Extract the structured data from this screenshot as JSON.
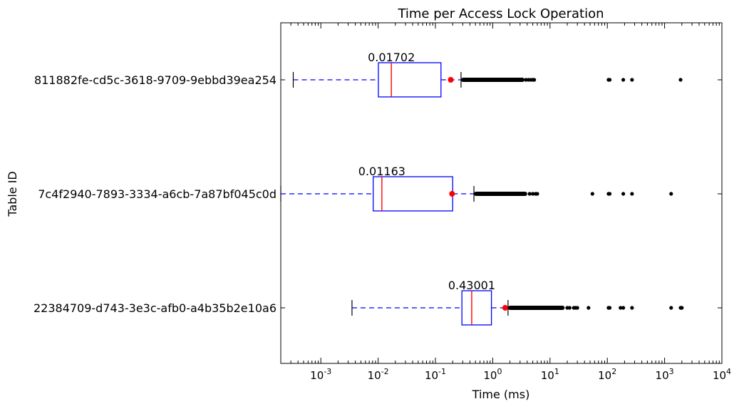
{
  "chart_data": {
    "type": "boxplot",
    "orientation": "horizontal",
    "title": "Time per Access Lock Operation",
    "xlabel": "Time (ms)",
    "ylabel": "Table ID",
    "xscale": "log",
    "xlim": [
      0.0002,
      10000
    ],
    "x_ticks": [
      {
        "value": 0.001,
        "base": "10",
        "exp": "-3"
      },
      {
        "value": 0.01,
        "base": "10",
        "exp": "-2"
      },
      {
        "value": 0.1,
        "base": "10",
        "exp": "-1"
      },
      {
        "value": 1,
        "base": "10",
        "exp": "0"
      },
      {
        "value": 10,
        "base": "10",
        "exp": "1"
      },
      {
        "value": 100,
        "base": "10",
        "exp": "2"
      },
      {
        "value": 1000,
        "base": "10",
        "exp": "3"
      },
      {
        "value": 10000,
        "base": "10",
        "exp": "4"
      }
    ],
    "categories": [
      "811882fe-cd5c-3618-9709-9ebbd39ea254",
      "7c4f2940-7893-3334-a6cb-7a87bf045c0d",
      "22384709-d743-3e3c-afb0-a4b35b2e10a6"
    ],
    "series": [
      {
        "label": "811882fe-cd5c-3618-9709-9ebbd39ea254",
        "whisker_low": 0.00033,
        "q1": 0.0101,
        "median": 0.01702,
        "q3": 0.125,
        "whisker_high": 0.28,
        "mean": 0.185,
        "median_label": "0.01702",
        "dense_outliers": [
          0.28,
          3.6
        ],
        "outliers": [
          3.8,
          4.2,
          4.6,
          5.0,
          5.3,
          105,
          110,
          190,
          270,
          1900
        ]
      },
      {
        "label": "7c4f2940-7893-3334-a6cb-7a87bf045c0d",
        "whisker_low": 0.0002,
        "q1": 0.0082,
        "median": 0.01163,
        "q3": 0.2,
        "whisker_high": 0.47,
        "mean": 0.195,
        "median_label": "0.01163",
        "dense_outliers": [
          0.47,
          4.0
        ],
        "outliers": [
          4.4,
          5.0,
          5.6,
          6.0,
          55,
          105,
          110,
          190,
          270,
          1300
        ]
      },
      {
        "label": "22384709-d743-3e3c-afb0-a4b35b2e10a6",
        "whisker_low": 0.0035,
        "q1": 0.29,
        "median": 0.43001,
        "q3": 0.95,
        "whisker_high": 1.85,
        "mean": 1.65,
        "median_label": "0.43001",
        "dense_outliers": [
          1.85,
          18
        ],
        "outliers": [
          20,
          22,
          26,
          28,
          30,
          47,
          105,
          110,
          170,
          190,
          270,
          1300,
          1900,
          1950,
          2000
        ]
      }
    ],
    "colors": {
      "box": "#0000ff",
      "median": "#ff0000",
      "mean": "#ff0000",
      "whisker": "#0000ff",
      "cap": "#000000",
      "outlier": "#000000"
    },
    "grid": false,
    "legend": "none"
  }
}
